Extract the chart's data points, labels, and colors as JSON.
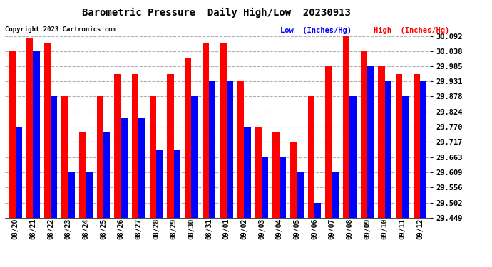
{
  "title": "Barometric Pressure  Daily High/Low  20230913",
  "copyright": "Copyright 2023 Cartronics.com",
  "legend_low": "Low  (Inches/Hg)",
  "legend_high": "High  (Inches/Hg)",
  "dates": [
    "08/20",
    "08/21",
    "08/22",
    "08/23",
    "08/24",
    "08/25",
    "08/26",
    "08/27",
    "08/28",
    "08/29",
    "08/30",
    "08/31",
    "09/01",
    "09/02",
    "09/03",
    "09/04",
    "09/05",
    "09/06",
    "09/07",
    "09/08",
    "09/09",
    "09/10",
    "09/11",
    "09/12"
  ],
  "high_values": [
    30.038,
    30.085,
    30.065,
    29.878,
    29.75,
    29.878,
    29.958,
    29.958,
    29.878,
    29.958,
    30.012,
    30.065,
    30.065,
    29.931,
    29.77,
    29.75,
    29.717,
    29.878,
    29.985,
    30.092,
    30.038,
    29.985,
    29.958,
    29.958
  ],
  "low_values": [
    29.77,
    30.038,
    29.878,
    29.61,
    29.609,
    29.75,
    29.8,
    29.8,
    29.69,
    29.69,
    29.878,
    29.931,
    29.931,
    29.77,
    29.663,
    29.663,
    29.609,
    29.502,
    29.609,
    29.878,
    29.985,
    29.931,
    29.878,
    29.931
  ],
  "ylim_min": 29.449,
  "ylim_max": 30.092,
  "yticks": [
    29.449,
    29.502,
    29.556,
    29.609,
    29.663,
    29.717,
    29.77,
    29.824,
    29.878,
    29.931,
    29.985,
    30.038,
    30.092
  ],
  "bar_color_high": "#ff0000",
  "bar_color_low": "#0000ff",
  "bg_color": "#ffffff",
  "grid_color": "#b0b0b0",
  "title_color": "#000000",
  "copyright_color": "#000000",
  "legend_low_color": "#0000ff",
  "legend_high_color": "#ff0000"
}
